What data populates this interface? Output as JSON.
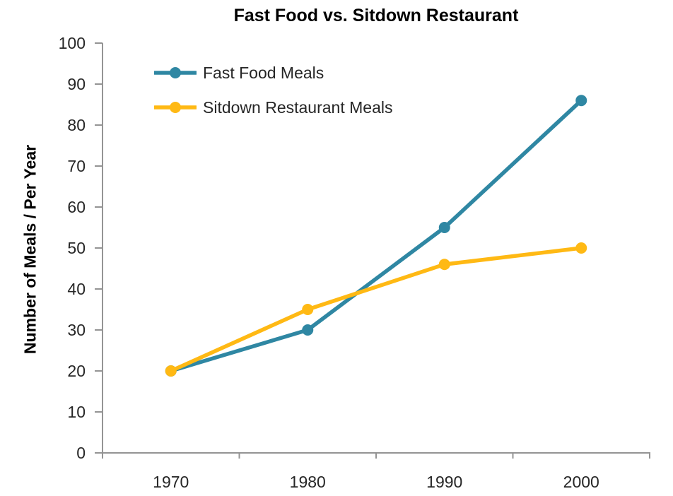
{
  "chart_data": {
    "type": "line",
    "title": "Fast Food vs. Sitdown Restaurant",
    "ylabel": "Number of Meals / Per Year",
    "xlabel": "",
    "categories": [
      "1970",
      "1980",
      "1990",
      "2000"
    ],
    "series": [
      {
        "name": "Fast Food Meals",
        "color": "#2F87A3",
        "marker": "circle",
        "values": [
          20,
          30,
          55,
          86
        ]
      },
      {
        "name": "Sitdown Restaurant Meals",
        "color": "#FFB914",
        "marker": "circle",
        "values": [
          20,
          35,
          46,
          50
        ]
      }
    ],
    "ylim": [
      0,
      100
    ],
    "ytick_step": 10,
    "yticks": [
      0,
      10,
      20,
      30,
      40,
      50,
      60,
      70,
      80,
      90,
      100
    ],
    "grid": false,
    "legend_position": "top-left-inside",
    "axis_color": "#949494",
    "tick_label_color": "#262626",
    "title_color": "#000000",
    "background_color": "#FFFFFF"
  }
}
